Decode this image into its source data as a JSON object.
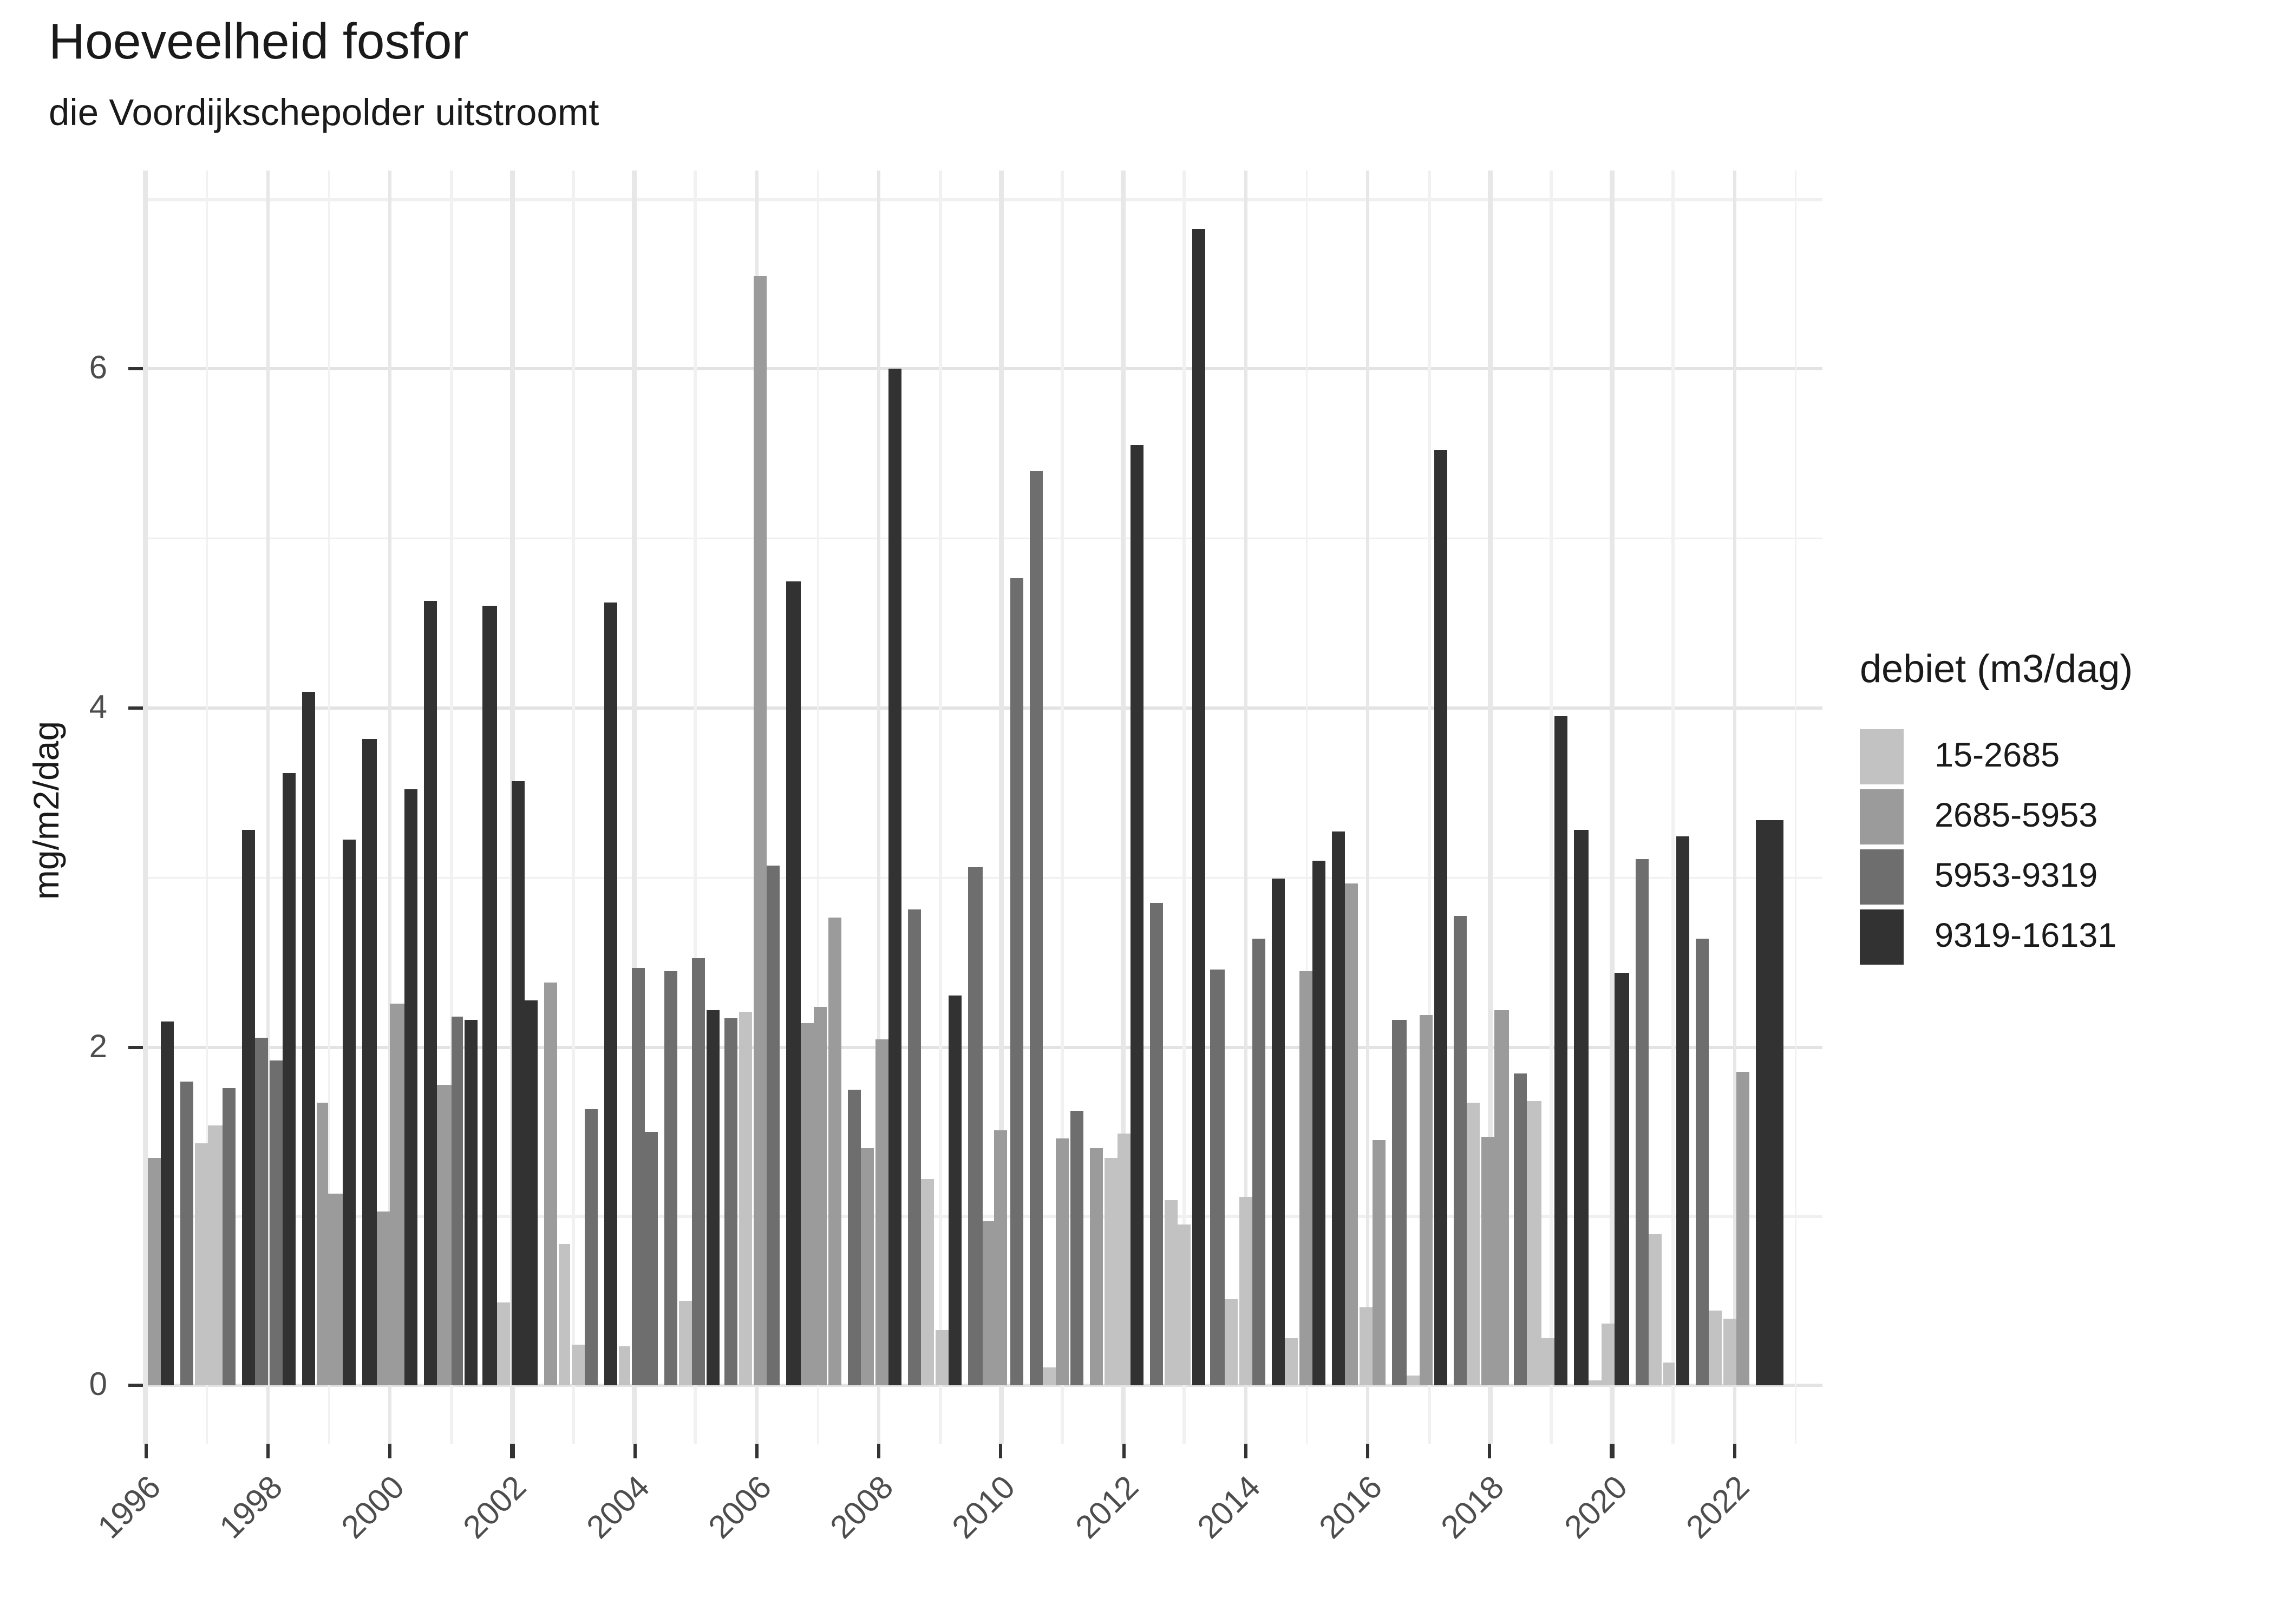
{
  "chart_data": {
    "type": "bar",
    "title": "Hoeveelheid fosfor",
    "subtitle": "die Voordijkschepolder uitstroomt",
    "ylabel": "mg/m2/dag",
    "xlabel": "",
    "ylim": [
      0,
      7.17
    ],
    "grid": "on",
    "y_major_ticks": [
      0,
      2,
      4,
      6
    ],
    "y_minor_ticks": [
      1,
      3,
      5,
      7
    ],
    "x_tick_years": [
      1996,
      1998,
      2000,
      2002,
      2004,
      2006,
      2008,
      2010,
      2012,
      2014,
      2016,
      2018,
      2020,
      2022
    ],
    "legend": {
      "title": "debiet (m3/dag)",
      "position": "right",
      "items": [
        {
          "label": "15-2685",
          "color": "#c2c2c2"
        },
        {
          "label": "2685-5953",
          "color": "#9b9b9b"
        },
        {
          "label": "5953-9319",
          "color": "#6e6e6e"
        },
        {
          "label": "9319-16131",
          "color": "#323232"
        }
      ]
    },
    "bars_note": "each bar = [x_left_px, width_px, legend_category_index, value_mg_m2_dag]; quarterly flow-weighted phosphorus load 1996-2022",
    "bars": [
      [
        90.5,
        8.4,
        1,
        1.34
      ],
      [
        99.2,
        8.2,
        3,
        2.15
      ],
      [
        111.3,
        8.2,
        2,
        1.8
      ],
      [
        119.8,
        8.1,
        0,
        1.43
      ],
      [
        128.2,
        8.4,
        0,
        1.54
      ],
      [
        136.9,
        8.2,
        2,
        1.76
      ],
      [
        148.5,
        8.2,
        3,
        3.28
      ],
      [
        157.0,
        8.2,
        2,
        2.05
      ],
      [
        165.7,
        7.9,
        2,
        1.92
      ],
      [
        174.1,
        8.2,
        3,
        3.62
      ],
      [
        186.0,
        8.1,
        3,
        4.1
      ],
      [
        194.9,
        7.4,
        1,
        1.67
      ],
      [
        202.3,
        8.6,
        1,
        1.13
      ],
      [
        211.1,
        8.1,
        3,
        3.22
      ],
      [
        223.3,
        8.3,
        3,
        3.82
      ],
      [
        231.9,
        8.1,
        1,
        1.03
      ],
      [
        240.0,
        8.6,
        1,
        2.26
      ],
      [
        248.6,
        8.1,
        3,
        3.52
      ],
      [
        260.9,
        8.2,
        3,
        4.63
      ],
      [
        269.1,
        8.5,
        1,
        1.78
      ],
      [
        277.6,
        7.8,
        2,
        2.18
      ],
      [
        286.0,
        8.0,
        3,
        2.16
      ],
      [
        297.3,
        8.3,
        3,
        4.6
      ],
      [
        306.0,
        8.0,
        0,
        0.49
      ],
      [
        314.7,
        8.0,
        3,
        3.57
      ],
      [
        323.3,
        7.7,
        3,
        2.27
      ],
      [
        335.0,
        8.0,
        1,
        2.38
      ],
      [
        343.7,
        7.7,
        0,
        0.84
      ],
      [
        351.7,
        8.0,
        0,
        0.24
      ],
      [
        360.3,
        8.0,
        2,
        1.63
      ],
      [
        372.3,
        8.0,
        3,
        4.62
      ],
      [
        380.7,
        7.7,
        0,
        0.23
      ],
      [
        389.0,
        8.0,
        2,
        2.47
      ],
      [
        397.3,
        8.0,
        2,
        1.5
      ],
      [
        409.3,
        8.0,
        2,
        2.45
      ],
      [
        418.0,
        8.0,
        0,
        0.5
      ],
      [
        426.3,
        8.0,
        2,
        2.52
      ],
      [
        434.7,
        8.0,
        3,
        2.22
      ],
      [
        446.3,
        8.0,
        2,
        2.17
      ],
      [
        454.7,
        8.3,
        0,
        2.21
      ],
      [
        464.0,
        8.3,
        1,
        6.55
      ],
      [
        472.3,
        8.0,
        2,
        3.07
      ],
      [
        484.3,
        8.3,
        3,
        4.75
      ],
      [
        493.0,
        8.0,
        1,
        2.14
      ],
      [
        501.3,
        8.0,
        1,
        2.24
      ],
      [
        510.0,
        8.0,
        1,
        2.76
      ],
      [
        521.7,
        8.3,
        2,
        1.75
      ],
      [
        530.3,
        8.0,
        1,
        1.4
      ],
      [
        538.7,
        8.0,
        1,
        2.04
      ],
      [
        546.7,
        8.3,
        3,
        6.0
      ],
      [
        559.0,
        8.0,
        2,
        2.81
      ],
      [
        567.3,
        8.0,
        0,
        1.22
      ],
      [
        575.7,
        8.0,
        0,
        0.33
      ],
      [
        584.0,
        8.0,
        3,
        2.3
      ],
      [
        596.3,
        8.3,
        2,
        3.06
      ],
      [
        604.7,
        7.6,
        1,
        0.97
      ],
      [
        612.3,
        8.0,
        1,
        1.51
      ],
      [
        621.7,
        8.0,
        2,
        4.77
      ],
      [
        633.7,
        8.0,
        2,
        5.4
      ],
      [
        642.3,
        7.7,
        0,
        0.11
      ],
      [
        650.3,
        8.0,
        1,
        1.46
      ],
      [
        659.0,
        8.0,
        2,
        1.62
      ],
      [
        671.0,
        8.3,
        1,
        1.4
      ],
      [
        679.7,
        8.0,
        0,
        1.34
      ],
      [
        687.7,
        8.0,
        0,
        1.49
      ],
      [
        696.3,
        8.0,
        3,
        5.55
      ],
      [
        708.3,
        8.0,
        2,
        2.85
      ],
      [
        717.0,
        7.7,
        0,
        1.1
      ],
      [
        725.0,
        8.0,
        0,
        0.95
      ],
      [
        733.7,
        8.0,
        3,
        6.83
      ],
      [
        745.3,
        8.7,
        2,
        2.46
      ],
      [
        754.0,
        8.3,
        0,
        0.51
      ],
      [
        762.7,
        8.0,
        0,
        1.11
      ],
      [
        771.0,
        8.0,
        2,
        2.64
      ],
      [
        782.7,
        8.3,
        3,
        2.99
      ],
      [
        791.3,
        8.0,
        0,
        0.28
      ],
      [
        799.7,
        8.0,
        1,
        2.45
      ],
      [
        808.0,
        8.3,
        3,
        3.1
      ],
      [
        819.7,
        8.3,
        3,
        3.27
      ],
      [
        828.3,
        8.0,
        1,
        2.96
      ],
      [
        836.7,
        8.0,
        0,
        0.46
      ],
      [
        845.0,
        8.0,
        1,
        1.45
      ],
      [
        857.3,
        8.3,
        2,
        2.16
      ],
      [
        866.0,
        7.7,
        0,
        0.06
      ],
      [
        874.3,
        8.0,
        1,
        2.19
      ],
      [
        882.7,
        8.0,
        3,
        5.52
      ],
      [
        895.0,
        8.0,
        2,
        2.77
      ],
      [
        903.3,
        8.0,
        0,
        1.67
      ],
      [
        911.7,
        8.0,
        1,
        1.47
      ],
      [
        920.0,
        8.5,
        1,
        2.22
      ],
      [
        932.0,
        8.3,
        2,
        1.84
      ],
      [
        940.3,
        8.3,
        0,
        1.68
      ],
      [
        948.7,
        8.3,
        0,
        0.28
      ],
      [
        957.0,
        8.3,
        3,
        3.95
      ],
      [
        969.3,
        8.3,
        3,
        3.28
      ],
      [
        977.7,
        8.3,
        0,
        0.03
      ],
      [
        986.0,
        8.3,
        0,
        0.37
      ],
      [
        994.3,
        8.3,
        3,
        2.44
      ],
      [
        1006.7,
        8.0,
        2,
        3.11
      ],
      [
        1015.3,
        8.0,
        0,
        0.89
      ],
      [
        1023.7,
        7.7,
        0,
        0.14
      ],
      [
        1032.0,
        8.0,
        3,
        3.24
      ],
      [
        1044.0,
        8.0,
        2,
        2.64
      ],
      [
        1052.3,
        8.0,
        0,
        0.44
      ],
      [
        1060.7,
        8.0,
        0,
        0.4
      ],
      [
        1069.0,
        8.0,
        1,
        1.85
      ],
      [
        1081.0,
        16.7,
        3,
        3.34
      ]
    ]
  }
}
